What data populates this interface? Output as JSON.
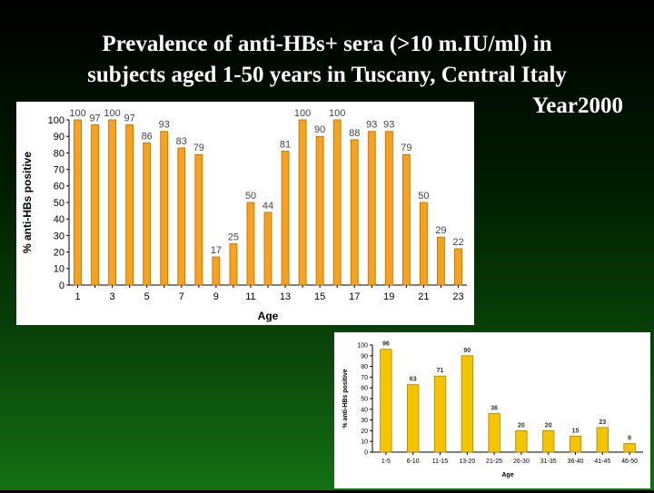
{
  "title": {
    "line1": "Prevalence of anti-HBs+ sera (>10 m.IU/ml) in",
    "line2": "subjects aged 1-50 years in Tuscany, Central Italy",
    "line3": "Year2000"
  },
  "chart_data": [
    {
      "type": "bar",
      "title": "",
      "xlabel": "Age",
      "ylabel": "% anti-HBs positive",
      "ylim": [
        0,
        100
      ],
      "yticks": [
        0,
        10,
        20,
        30,
        40,
        50,
        60,
        70,
        80,
        90,
        100
      ],
      "categories": [
        "1",
        "2",
        "3",
        "4",
        "5",
        "6",
        "7",
        "8",
        "9",
        "10",
        "11",
        "12",
        "13",
        "14",
        "15",
        "16",
        "17",
        "18",
        "19",
        "20",
        "21",
        "22",
        "23"
      ],
      "tick_labels": [
        "1",
        "3",
        "5",
        "7",
        "9",
        "11",
        "13",
        "15",
        "17",
        "19",
        "21",
        "23"
      ],
      "values": [
        100,
        97,
        100,
        97,
        86,
        93,
        83,
        79,
        17,
        25,
        50,
        44,
        81,
        100,
        90,
        100,
        88,
        93,
        93,
        79,
        50,
        29,
        22
      ],
      "bar_color": "#f7a21c",
      "bar_stroke": "#b86a00"
    },
    {
      "type": "bar",
      "title": "",
      "xlabel": "Age",
      "ylabel": "% anti-HBs positive",
      "ylim": [
        0,
        100
      ],
      "yticks": [
        0,
        10,
        20,
        30,
        40,
        50,
        60,
        70,
        80,
        90,
        100
      ],
      "categories": [
        "1-5",
        "6-10",
        "11-15",
        "13-20",
        "21-25",
        "26-30",
        "31-35",
        "36-40",
        "41-45",
        "46-50"
      ],
      "values": [
        96,
        63,
        71,
        90,
        36,
        20,
        20,
        15,
        23,
        8
      ],
      "bar_color": "#f5c400",
      "bar_stroke": "#a88600"
    }
  ]
}
